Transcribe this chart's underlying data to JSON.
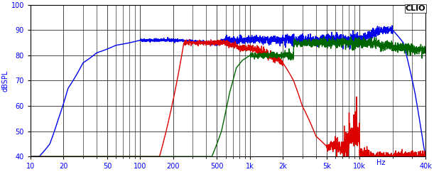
{
  "title": "CLIO",
  "ylabel": "dBSPL",
  "xlabel_right": "Hz",
  "xlim": [
    10,
    40000
  ],
  "ylim": [
    40,
    100
  ],
  "yticks": [
    40,
    50,
    60,
    70,
    80,
    90,
    100
  ],
  "xticks": [
    10,
    20,
    50,
    100,
    200,
    500,
    1000,
    2000,
    5000,
    10000,
    40000
  ],
  "xticklabels": [
    "10",
    "20",
    "50",
    "100",
    "200",
    "500",
    "1k",
    "2k",
    "5k",
    "10k",
    "40k"
  ],
  "bg_color": "#ffffff",
  "grid_color": "#000000",
  "line_colors": [
    "#0000ee",
    "#dd0000",
    "#006600"
  ],
  "line_width": 1.0
}
